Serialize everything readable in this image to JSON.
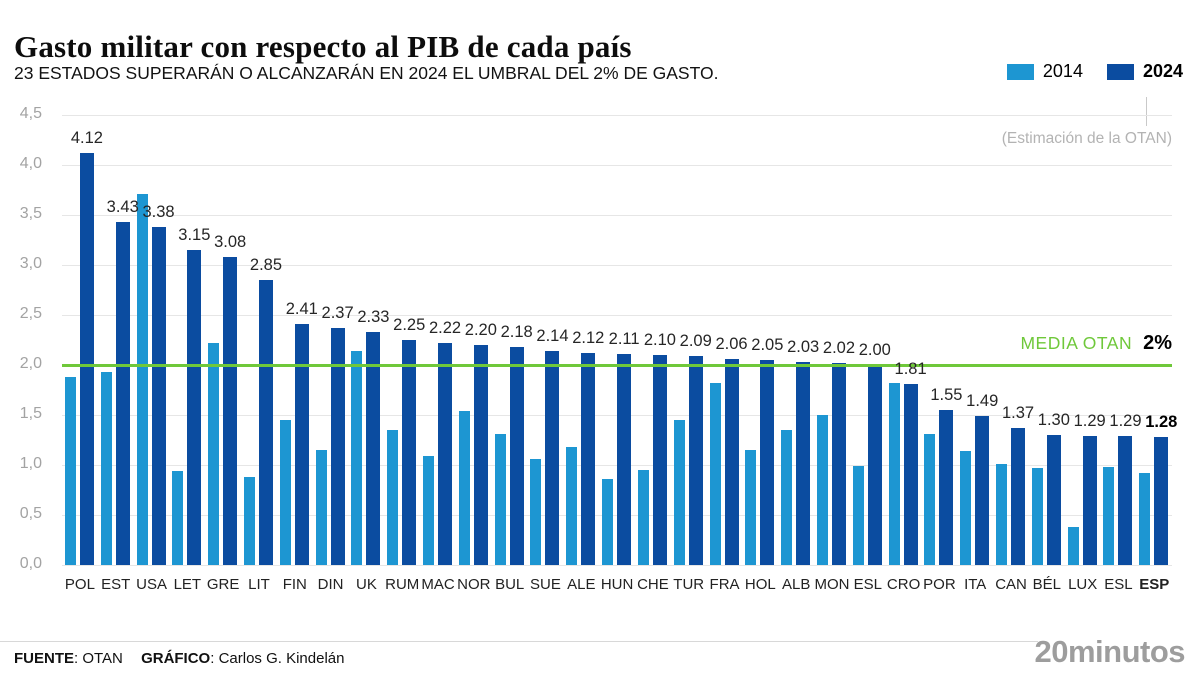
{
  "header": {
    "title": "Gasto militar con respecto al PIB de cada país",
    "subtitle": "23 ESTADOS SUPERARÁN O ALCANZARÁN EN 2024 EL UMBRAL DEL 2% DE GASTO."
  },
  "legend": {
    "items": [
      {
        "label": "2014",
        "color": "#1d96d2"
      },
      {
        "label": "2024",
        "color": "#0b4ca0"
      }
    ]
  },
  "annotations": {
    "estimation_note": "(Estimación de la OTAN)"
  },
  "chart_data": {
    "type": "bar",
    "title": "Gasto militar con respecto al PIB de cada país",
    "subtitle": "23 ESTADOS SUPERARÁN O ALCANZARÁN EN 2024 EL UMBRAL DEL 2% DE GASTO.",
    "categories": [
      "POL",
      "EST",
      "USA",
      "LET",
      "GRE",
      "LIT",
      "FIN",
      "DIN",
      "UK",
      "RUM",
      "MAC",
      "NOR",
      "BUL",
      "SUE",
      "ALE",
      "HUN",
      "CHE",
      "TUR",
      "FRA",
      "HOL",
      "ALB",
      "MON",
      "ESL",
      "CRO",
      "POR",
      "ITA",
      "CAN",
      "BÉL",
      "LUX",
      "ESL",
      "ESP"
    ],
    "series": [
      {
        "name": "2014",
        "color": "#1d96d2",
        "values": [
          1.88,
          1.93,
          3.71,
          0.94,
          2.22,
          0.88,
          1.45,
          1.15,
          2.14,
          1.35,
          1.09,
          1.54,
          1.31,
          1.06,
          1.18,
          0.86,
          0.95,
          1.45,
          1.82,
          1.15,
          1.35,
          1.5,
          0.99,
          1.82,
          1.31,
          1.14,
          1.01,
          0.97,
          0.38,
          0.98,
          0.92
        ]
      },
      {
        "name": "2024",
        "color": "#0b4ca0",
        "values": [
          4.12,
          3.43,
          3.38,
          3.15,
          3.08,
          2.85,
          2.41,
          2.37,
          2.33,
          2.25,
          2.22,
          2.2,
          2.18,
          2.14,
          2.12,
          2.11,
          2.1,
          2.09,
          2.06,
          2.05,
          2.03,
          2.02,
          2.0,
          1.81,
          1.55,
          1.49,
          1.37,
          1.3,
          1.29,
          1.29,
          1.28
        ]
      }
    ],
    "value_labels_series": "2024",
    "ylim": [
      0,
      4.5
    ],
    "ytick_step": 0.5,
    "yticks": [
      "0,0",
      "0,5",
      "1,0",
      "1,5",
      "2,0",
      "2,5",
      "3,0",
      "3,5",
      "4,0",
      "4,5"
    ],
    "grid": true,
    "legend_position": "top-right",
    "bold_category": "ESP",
    "reference_line": {
      "value": 2.0,
      "color": "#6fc83a",
      "label": "MEDIA OTAN",
      "value_label": "2%"
    }
  },
  "footer": {
    "source_label": "FUENTE",
    "source_value": ": OTAN",
    "credit_label": "GRÁFICO",
    "credit_value": ": Carlos G. Kindelán",
    "logo": "20minutos"
  }
}
